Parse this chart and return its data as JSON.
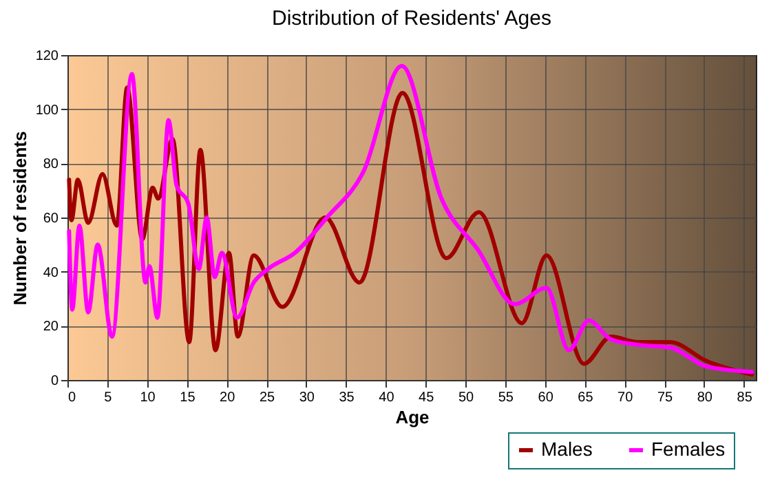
{
  "chart_data": {
    "type": "line",
    "title": "Distribution of Residents' Ages",
    "xlabel": "Age",
    "ylabel": "Number of residents",
    "xlim": [
      0,
      86.5
    ],
    "xticks": [
      0,
      5,
      10,
      15,
      20,
      25,
      30,
      35,
      40,
      45,
      50,
      55,
      60,
      65,
      70,
      75,
      80,
      85
    ],
    "ylim": [
      0,
      120
    ],
    "yticks": [
      0,
      20,
      40,
      60,
      80,
      100,
      120
    ],
    "grid": true,
    "legend": "bottom right",
    "line_style": "solid",
    "series": [
      {
        "name": "Males",
        "color": "#a00000",
        "x": [
          0.2,
          0.5,
          1.3,
          2.6,
          4.4,
          6.2,
          7.5,
          9.4,
          10.7,
          11.4,
          13.2,
          15.3,
          16.7,
          18.6,
          20.3,
          21.4,
          23.4,
          27,
          32.4,
          36.7,
          42.1,
          47.6,
          51.7,
          57.1,
          60.2,
          64.9,
          68.3,
          71.7,
          75.7,
          80.3,
          86
        ],
        "values": [
          74,
          59,
          74,
          58,
          76,
          57,
          108,
          52,
          71,
          67,
          89,
          14,
          85,
          11,
          47,
          16,
          46,
          27,
          60,
          36,
          106,
          45,
          62,
          21,
          46,
          6,
          16,
          14,
          14,
          7,
          2
        ]
      },
      {
        "name": "Females",
        "color": "#ff00ff",
        "x": [
          0.2,
          0.6,
          1.5,
          2.6,
          3.8,
          5.6,
          8.1,
          9.8,
          10.3,
          11.3,
          12.7,
          13.7,
          15.2,
          16.5,
          17.5,
          18.5,
          19.4,
          21.3,
          23.4,
          25.2,
          28.6,
          32.6,
          37.2,
          42,
          47,
          51.6,
          56.2,
          60.2,
          63,
          65.5,
          68.3,
          71.7,
          75.7,
          80.3,
          86
        ],
        "values": [
          55,
          26,
          57,
          25,
          50,
          16,
          113,
          36,
          42,
          23,
          96,
          72,
          65,
          41,
          60,
          38,
          47,
          23,
          36,
          41,
          47,
          60,
          77,
          116,
          67,
          48,
          28,
          34,
          11,
          22,
          15,
          13,
          12,
          5,
          3
        ]
      }
    ]
  }
}
